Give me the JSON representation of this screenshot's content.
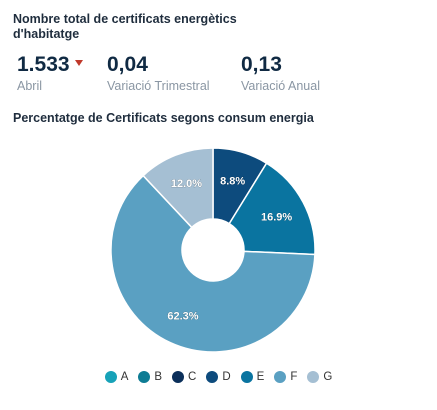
{
  "header": {
    "title": "Nombre total de certificats energètics d'habitatge"
  },
  "kpis": [
    {
      "value": "1.533",
      "label": "Abril",
      "trend": "down"
    },
    {
      "value": "0,04",
      "label": "Variació Trimestral"
    },
    {
      "value": "0,13",
      "label": "Variació Anual"
    }
  ],
  "colors": {
    "trend_down": "#c0392b"
  },
  "chart_data": {
    "type": "pie",
    "title": "Percentatge de Certificats segons consum energia",
    "donut": true,
    "categories": [
      "A",
      "B",
      "C",
      "D",
      "E",
      "F",
      "G"
    ],
    "values": [
      0,
      0,
      0,
      8.8,
      16.9,
      62.3,
      12.0
    ],
    "data_labels": [
      "",
      "",
      "",
      "8.8%",
      "16.9%",
      "62.3%",
      "12.0%"
    ],
    "colors": [
      "#17a2b8",
      "#0e7c94",
      "#0b2f5a",
      "#0d4b7d",
      "#0a74a0",
      "#5aa0c2",
      "#a5bfd3"
    ],
    "legend_position": "bottom"
  }
}
